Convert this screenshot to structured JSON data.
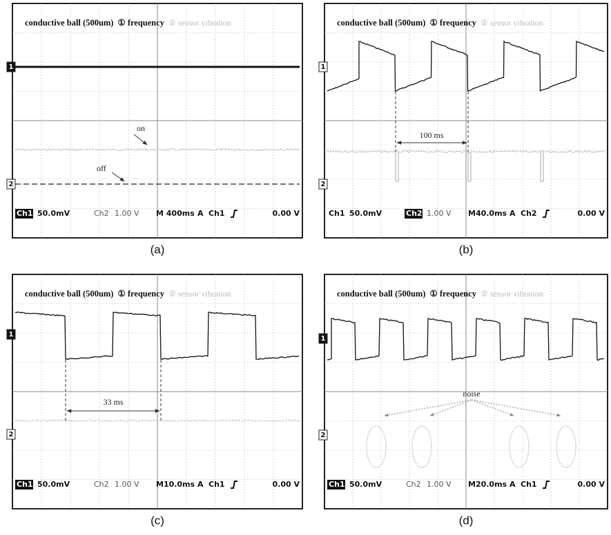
{
  "panels": [
    {
      "title": [
        "conductive ball (500um)",
        "① frequency",
        "② sensor vibration"
      ],
      "markers": [
        "1",
        "2"
      ],
      "status": {
        "channels": [
          {
            "label": "Ch1",
            "scale": "50.0mV",
            "active": true
          },
          {
            "label": "Ch2",
            "scale": "1.00 V",
            "active": false
          }
        ],
        "timebase": "M 400ms",
        "trigger": "A",
        "trigger_channel": "Ch1",
        "level": "0.00 V"
      },
      "annotations": [
        "on",
        "off"
      ],
      "caption": "(a)"
    },
    {
      "title": [
        "conductive ball (500um)",
        "① frequency",
        "② sensor vibration"
      ],
      "markers": [
        "1",
        "2"
      ],
      "status": {
        "channels": [
          {
            "label": "Ch1",
            "scale": "50.0mV",
            "active": false
          },
          {
            "label": "Ch2",
            "scale": "1.00 V",
            "active": true
          }
        ],
        "timebase": "M40.0ms",
        "trigger": "A",
        "trigger_channel": "Ch2",
        "level": "0.00 V"
      },
      "annotations": [
        "100 ms"
      ],
      "caption": "(b)"
    },
    {
      "title": [
        "conductive ball (500um)",
        "① frequency",
        "② sensor vibration"
      ],
      "markers": [
        "1",
        "2"
      ],
      "status": {
        "channels": [
          {
            "label": "Ch1",
            "scale": "50.0mV",
            "active": true
          },
          {
            "label": "Ch2",
            "scale": "1.00 V",
            "active": false
          }
        ],
        "timebase": "M10.0ms",
        "trigger": "A",
        "trigger_channel": "Ch1",
        "level": "0.00 V"
      },
      "annotations": [
        "33 ms"
      ],
      "caption": "(c)"
    },
    {
      "title": [
        "conductive ball (500um)",
        "① frequency",
        "② sensor vibration"
      ],
      "markers": [
        "1",
        "2"
      ],
      "status": {
        "channels": [
          {
            "label": "Ch1",
            "scale": "50.0mV",
            "active": true
          },
          {
            "label": "Ch2",
            "scale": "1.00 V",
            "active": false
          }
        ],
        "timebase": "M20.0ms",
        "trigger": "A",
        "trigger_channel": "Ch1",
        "level": "0.00 V"
      },
      "annotations": [
        "noise"
      ],
      "caption": "(d)"
    }
  ]
}
